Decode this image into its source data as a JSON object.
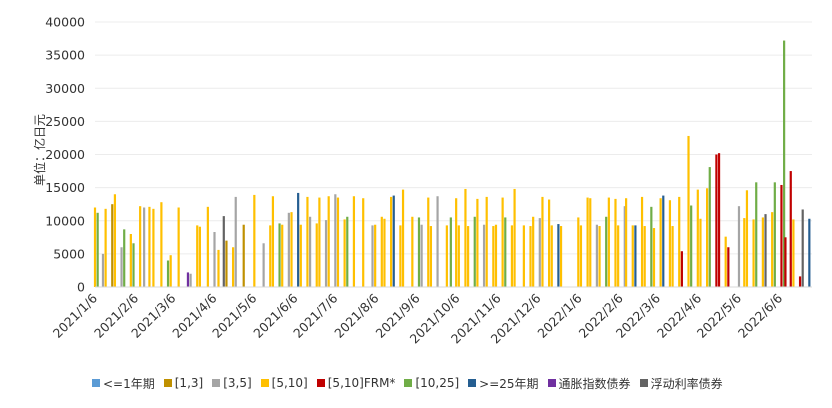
{
  "chart_data": {
    "type": "bar",
    "stacked": true,
    "title": "",
    "xlabel": "",
    "ylabel": "单位：亿日元",
    "ylim": [
      0,
      40000
    ],
    "yticks": [
      0,
      5000,
      10000,
      15000,
      20000,
      25000,
      30000,
      35000,
      40000
    ],
    "xtick_labels": [
      "2021/1/6",
      "2021/2/6",
      "2021/3/6",
      "2021/4/6",
      "2021/5/6",
      "2021/6/6",
      "2021/7/6",
      "2021/8/6",
      "2021/9/6",
      "2021/10/6",
      "2021/11/6",
      "2021/12/6",
      "2022/1/6",
      "2022/2/6",
      "2022/3/6",
      "2022/4/6",
      "2022/5/6",
      "2022/6/6"
    ],
    "grid": true,
    "legend_position": "bottom",
    "colors": {
      "le1": "#5b9bd5",
      "y1_3": "#bf9000",
      "y3_5": "#a5a5a5",
      "y5_10": "#ffc000",
      "frm": "#c00000",
      "y10_25": "#70ad47",
      "ge25": "#255e91",
      "infl": "#7030a0",
      "float": "#636363"
    },
    "series_names": [
      "<=1年期",
      "[1,3]",
      "[3,5]",
      "[5,10]",
      "[5,10]FRM*",
      "[10,25]",
      ">=25年期",
      "通胀指数债券",
      "浮动利率债券"
    ],
    "auction_points": [
      {
        "x": "2021/1/6",
        "s": "y5_10",
        "v": 12000
      },
      {
        "x": "2021/1/8",
        "s": "y10_25",
        "v": 11200
      },
      {
        "x": "2021/1/12",
        "s": "y3_5",
        "v": 5000
      },
      {
        "x": "2021/1/14",
        "s": "y5_10",
        "v": 11800
      },
      {
        "x": "2021/1/19",
        "s": "y1_3",
        "v": 12500
      },
      {
        "x": "2021/1/21",
        "s": "y5_10",
        "v": 14000
      },
      {
        "x": "2021/1/26",
        "s": "y3_5",
        "v": 6000
      },
      {
        "x": "2021/1/28",
        "s": "y10_25",
        "v": 8700
      },
      {
        "x": "2021/2/2",
        "s": "y5_10",
        "v": 8000
      },
      {
        "x": "2021/2/4",
        "s": "y10_25",
        "v": 6600
      },
      {
        "x": "2021/2/9",
        "s": "y5_10",
        "v": 12200
      },
      {
        "x": "2021/2/12",
        "s": "y3_5",
        "v": 12000
      },
      {
        "x": "2021/2/16",
        "s": "y5_10",
        "v": 12100
      },
      {
        "x": "2021/2/19",
        "s": "y5_10",
        "v": 11800
      },
      {
        "x": "2021/2/25",
        "s": "y5_10",
        "v": 12800
      },
      {
        "x": "2021/3/2",
        "s": "y10_25",
        "v": 4000
      },
      {
        "x": "2021/3/4",
        "s": "y5_10",
        "v": 4800
      },
      {
        "x": "2021/3/10",
        "s": "y5_10",
        "v": 12000
      },
      {
        "x": "2021/3/17",
        "s": "infl",
        "v": 2200
      },
      {
        "x": "2021/3/19",
        "s": "y3_5",
        "v": 2000
      },
      {
        "x": "2021/3/24",
        "s": "y5_10",
        "v": 9300
      },
      {
        "x": "2021/3/26",
        "s": "y5_10",
        "v": 9100
      },
      {
        "x": "2021/4/1",
        "s": "y5_10",
        "v": 12100
      },
      {
        "x": "2021/4/6",
        "s": "y3_5",
        "v": 8300
      },
      {
        "x": "2021/4/9",
        "s": "y5_10",
        "v": 5600
      },
      {
        "x": "2021/4/13",
        "s": "float",
        "v": 10700
      },
      {
        "x": "2021/4/15",
        "s": "y1_3",
        "v": 7000
      },
      {
        "x": "2021/4/20",
        "s": "y5_10",
        "v": 6000
      },
      {
        "x": "2021/4/22",
        "s": "y3_5",
        "v": 13600
      },
      {
        "x": "2021/4/28",
        "s": "y1_3",
        "v": 9400
      },
      {
        "x": "2021/5/6",
        "s": "y5_10",
        "v": 13900
      },
      {
        "x": "2021/5/13",
        "s": "y3_5",
        "v": 6600
      },
      {
        "x": "2021/5/18",
        "s": "y5_10",
        "v": 9300
      },
      {
        "x": "2021/5/20",
        "s": "y5_10",
        "v": 13700
      },
      {
        "x": "2021/5/25",
        "s": "y10_25",
        "v": 9600
      },
      {
        "x": "2021/5/27",
        "s": "y5_10",
        "v": 9400
      },
      {
        "x": "2021/6/1",
        "s": "y3_5",
        "v": 11200
      },
      {
        "x": "2021/6/3",
        "s": "y5_10",
        "v": 11300
      },
      {
        "x": "2021/6/8",
        "s": "ge25",
        "v": 14200
      },
      {
        "x": "2021/6/10",
        "s": "y5_10",
        "v": 9400
      },
      {
        "x": "2021/6/15",
        "s": "y5_10",
        "v": 13600
      },
      {
        "x": "2021/6/17",
        "s": "y3_5",
        "v": 10600
      },
      {
        "x": "2021/6/22",
        "s": "y5_10",
        "v": 9600
      },
      {
        "x": "2021/6/24",
        "s": "y5_10",
        "v": 13500
      },
      {
        "x": "2021/6/29",
        "s": "y3_5",
        "v": 10100
      },
      {
        "x": "2021/7/1",
        "s": "y5_10",
        "v": 13700
      },
      {
        "x": "2021/7/6",
        "s": "y3_5",
        "v": 14000
      },
      {
        "x": "2021/7/8",
        "s": "y5_10",
        "v": 13500
      },
      {
        "x": "2021/7/13",
        "s": "y5_10",
        "v": 10200
      },
      {
        "x": "2021/7/15",
        "s": "y10_25",
        "v": 10600
      },
      {
        "x": "2021/7/20",
        "s": "y5_10",
        "v": 13700
      },
      {
        "x": "2021/7/27",
        "s": "y5_10",
        "v": 13400
      },
      {
        "x": "2021/8/3",
        "s": "y3_5",
        "v": 9300
      },
      {
        "x": "2021/8/5",
        "s": "y5_10",
        "v": 9400
      },
      {
        "x": "2021/8/10",
        "s": "y5_10",
        "v": 10600
      },
      {
        "x": "2021/8/12",
        "s": "y5_10",
        "v": 10300
      },
      {
        "x": "2021/8/17",
        "s": "y5_10",
        "v": 13600
      },
      {
        "x": "2021/8/19",
        "s": "ge25",
        "v": 13800
      },
      {
        "x": "2021/8/24",
        "s": "y5_10",
        "v": 9300
      },
      {
        "x": "2021/8/26",
        "s": "y5_10",
        "v": 14700
      },
      {
        "x": "2021/9/2",
        "s": "y5_10",
        "v": 10600
      },
      {
        "x": "2021/9/7",
        "s": "y10_25",
        "v": 10500
      },
      {
        "x": "2021/9/9",
        "s": "y3_5",
        "v": 9400
      },
      {
        "x": "2021/9/14",
        "s": "y5_10",
        "v": 13500
      },
      {
        "x": "2021/9/16",
        "s": "y5_10",
        "v": 9200
      },
      {
        "x": "2021/9/21",
        "s": "y3_5",
        "v": 13700
      },
      {
        "x": "2021/9/28",
        "s": "y5_10",
        "v": 9300
      },
      {
        "x": "2021/10/1",
        "s": "y10_25",
        "v": 10500
      },
      {
        "x": "2021/10/5",
        "s": "y5_10",
        "v": 13400
      },
      {
        "x": "2021/10/7",
        "s": "y5_10",
        "v": 9300
      },
      {
        "x": "2021/10/12",
        "s": "y5_10",
        "v": 14800
      },
      {
        "x": "2021/10/14",
        "s": "y5_10",
        "v": 9200
      },
      {
        "x": "2021/10/19",
        "s": "y10_25",
        "v": 10600
      },
      {
        "x": "2021/10/21",
        "s": "y5_10",
        "v": 13300
      },
      {
        "x": "2021/10/26",
        "s": "y3_5",
        "v": 9400
      },
      {
        "x": "2021/10/28",
        "s": "y5_10",
        "v": 13600
      },
      {
        "x": "2021/11/2",
        "s": "y5_10",
        "v": 9200
      },
      {
        "x": "2021/11/4",
        "s": "y5_10",
        "v": 9400
      },
      {
        "x": "2021/11/9",
        "s": "y5_10",
        "v": 13500
      },
      {
        "x": "2021/11/11",
        "s": "y10_25",
        "v": 10500
      },
      {
        "x": "2021/11/16",
        "s": "y5_10",
        "v": 9300
      },
      {
        "x": "2021/11/18",
        "s": "y5_10",
        "v": 14800
      },
      {
        "x": "2021/11/25",
        "s": "y5_10",
        "v": 9300
      },
      {
        "x": "2021/11/30",
        "s": "y5_10",
        "v": 9200
      },
      {
        "x": "2021/12/2",
        "s": "y5_10",
        "v": 10600
      },
      {
        "x": "2021/12/7",
        "s": "y3_5",
        "v": 10400
      },
      {
        "x": "2021/12/9",
        "s": "y5_10",
        "v": 13600
      },
      {
        "x": "2021/12/14",
        "s": "y5_10",
        "v": 13200
      },
      {
        "x": "2021/12/16",
        "s": "y5_10",
        "v": 9300
      },
      {
        "x": "2021/12/21",
        "s": "ge25",
        "v": 9500
      },
      {
        "x": "2021/12/23",
        "s": "y5_10",
        "v": 9200
      },
      {
        "x": "2022/1/5",
        "s": "y5_10",
        "v": 10500
      },
      {
        "x": "2022/1/7",
        "s": "y5_10",
        "v": 9300
      },
      {
        "x": "2022/1/12",
        "s": "y5_10",
        "v": 13500
      },
      {
        "x": "2022/1/14",
        "s": "y5_10",
        "v": 13400
      },
      {
        "x": "2022/1/19",
        "s": "y3_5",
        "v": 9400
      },
      {
        "x": "2022/1/21",
        "s": "y5_10",
        "v": 9200
      },
      {
        "x": "2022/1/26",
        "s": "y10_25",
        "v": 10600
      },
      {
        "x": "2022/1/28",
        "s": "y5_10",
        "v": 13500
      },
      {
        "x": "2022/2/2",
        "s": "y5_10",
        "v": 13300
      },
      {
        "x": "2022/2/4",
        "s": "y5_10",
        "v": 9300
      },
      {
        "x": "2022/2/9",
        "s": "y3_5",
        "v": 12200
      },
      {
        "x": "2022/2/10",
        "s": "y5_10",
        "v": 13400
      },
      {
        "x": "2022/2/15",
        "s": "y5_10",
        "v": 9300
      },
      {
        "x": "2022/2/17",
        "s": "ge25",
        "v": 9300
      },
      {
        "x": "2022/2/22",
        "s": "y5_10",
        "v": 13600
      },
      {
        "x": "2022/2/24",
        "s": "y5_10",
        "v": 9200
      },
      {
        "x": "2022/3/1",
        "s": "y10_25",
        "v": 12100
      },
      {
        "x": "2022/3/3",
        "s": "y5_10",
        "v": 8900
      },
      {
        "x": "2022/3/8",
        "s": "y5_10",
        "v": 13400
      },
      {
        "x": "2022/3/10",
        "s": "ge25",
        "v": 13800
      },
      {
        "x": "2022/3/15",
        "s": "y5_10",
        "v": 13100
      },
      {
        "x": "2022/3/17",
        "s": "y5_10",
        "v": 9200
      },
      {
        "x": "2022/3/22",
        "s": "y5_10",
        "v": 13600
      },
      {
        "x": "2022/3/24",
        "s": "frm",
        "v": 5400
      },
      {
        "x": "2022/3/29",
        "s": "y5_10",
        "v": 22800
      },
      {
        "x": "2022/3/31",
        "s": "y10_25",
        "v": 12300
      },
      {
        "x": "2022/4/5",
        "s": "y5_10",
        "v": 14700
      },
      {
        "x": "2022/4/7",
        "s": "y5_10",
        "v": 10300
      },
      {
        "x": "2022/4/12",
        "s": "y5_10",
        "v": 14900
      },
      {
        "x": "2022/4/14",
        "s": "y10_25",
        "v": 18100
      },
      {
        "x": "2022/4/19",
        "s": "frm",
        "v": 20000
      },
      {
        "x": "2022/4/21",
        "s": "frm",
        "v": 20200
      },
      {
        "x": "2022/4/26",
        "s": "y5_10",
        "v": 7600
      },
      {
        "x": "2022/4/28",
        "s": "frm",
        "v": 6000
      },
      {
        "x": "2022/5/6",
        "s": "y3_5",
        "v": 12200
      },
      {
        "x": "2022/5/10",
        "s": "y5_10",
        "v": 10400
      },
      {
        "x": "2022/5/12",
        "s": "y5_10",
        "v": 14600
      },
      {
        "x": "2022/5/17",
        "s": "y5_10",
        "v": 10200
      },
      {
        "x": "2022/5/19",
        "s": "y10_25",
        "v": 15800
      },
      {
        "x": "2022/5/24",
        "s": "y5_10",
        "v": 10500
      },
      {
        "x": "2022/5/26",
        "s": "float",
        "v": 11000
      },
      {
        "x": "2022/5/31",
        "s": "y5_10",
        "v": 11300
      },
      {
        "x": "2022/6/2",
        "s": "y10_25",
        "v": 15800
      },
      {
        "x": "2022/6/7",
        "s": "frm",
        "v": 15400
      },
      {
        "x": "2022/6/9",
        "s": "y10_25",
        "v": 37200
      },
      {
        "x": "2022/6/10",
        "s": "frm",
        "v": 7500
      },
      {
        "x": "2022/6/14",
        "s": "frm",
        "v": 17500
      },
      {
        "x": "2022/6/16",
        "s": "y5_10",
        "v": 10200
      },
      {
        "x": "2022/6/21",
        "s": "frm",
        "v": 1600
      },
      {
        "x": "2022/6/23",
        "s": "float",
        "v": 11700
      },
      {
        "x": "2022/6/28",
        "s": "ge25",
        "v": 10300
      }
    ]
  }
}
